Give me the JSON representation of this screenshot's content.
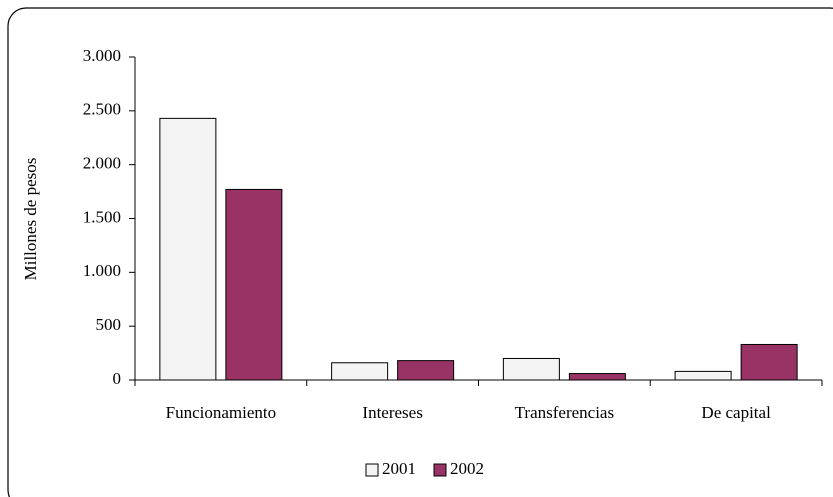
{
  "chart_data": {
    "type": "bar",
    "y_label": "Millones de pesos",
    "categories": [
      "Funcionamiento",
      "Intereses",
      "Transferencias",
      "De capital"
    ],
    "series": [
      {
        "name": "2001",
        "color": "#f4f4f4",
        "values": [
          2430,
          160,
          200,
          80
        ]
      },
      {
        "name": "2002",
        "color": "#993366",
        "values": [
          1770,
          180,
          60,
          330
        ]
      }
    ],
    "ylim": [
      0,
      3000
    ],
    "yticks": [
      0,
      500,
      {
        "value": 1000,
        "label": "1.000"
      },
      {
        "value": 1500,
        "label": "1.500"
      },
      {
        "value": 2000,
        "label": "2.000"
      },
      {
        "value": 2500,
        "label": "2.500"
      },
      {
        "value": 3000,
        "label": "3.000"
      }
    ],
    "legend": "bottom"
  }
}
